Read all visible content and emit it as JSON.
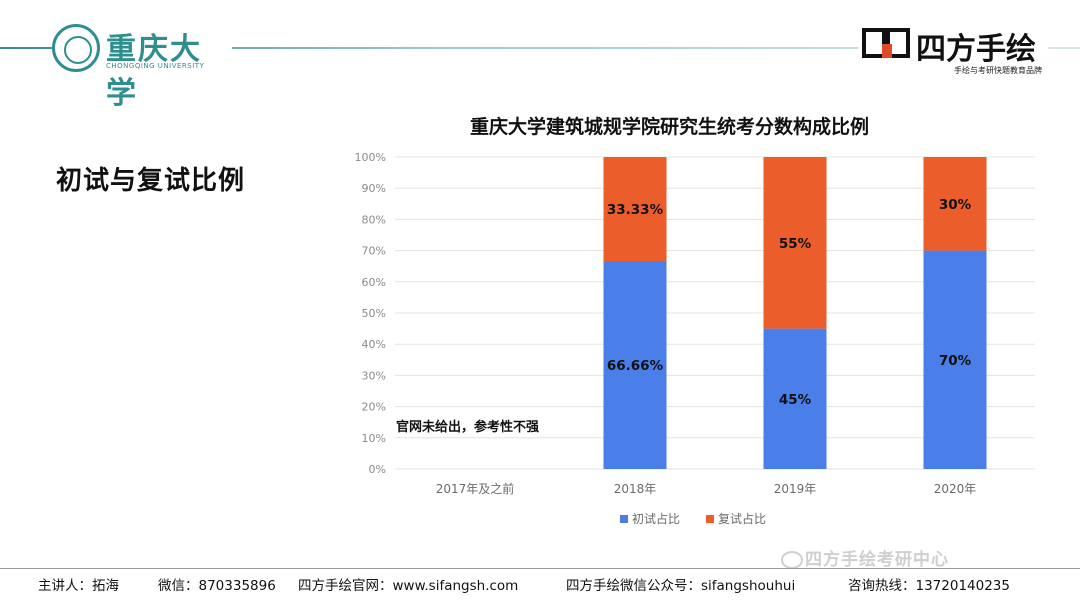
{
  "header": {
    "university_name_cn": "重庆大学",
    "university_name_en": "CHONGQING UNIVERSITY",
    "brand_name": "四方手绘",
    "brand_slogan": "手绘与考研快题教育品牌"
  },
  "section_title": "初试与复试比例",
  "chart_data": {
    "type": "bar",
    "stacked": true,
    "title": "重庆大学建筑城规学院研究生统考分数构成比例",
    "categories": [
      "2017年及之前",
      "2018年",
      "2019年",
      "2020年"
    ],
    "series": [
      {
        "name": "初试占比",
        "color": "#4a7ee8",
        "values": [
          null,
          66.66,
          45,
          70
        ],
        "labels": [
          "",
          "66.66%",
          "45%",
          "70%"
        ]
      },
      {
        "name": "复试占比",
        "color": "#eb5d2a",
        "values": [
          null,
          33.33,
          55,
          30
        ],
        "labels": [
          "",
          "33.33%",
          "55%",
          "30%"
        ]
      }
    ],
    "y_ticks": [
      "0%",
      "10%",
      "20%",
      "30%",
      "40%",
      "50%",
      "60%",
      "70%",
      "80%",
      "90%",
      "100%"
    ],
    "ylim": [
      0,
      100
    ],
    "grid": true,
    "legend": "bottom",
    "annotation": "官网未给出，参考性不强"
  },
  "footer": {
    "speaker": "主讲人：拓海",
    "wechat": "微信：870335896",
    "website": "四方手绘官网：www.sifangsh.com",
    "official_account": "四方手绘微信公众号：sifangshouhui",
    "hotline": "咨询热线：13720140235"
  },
  "watermark": "四方手绘考研中心"
}
